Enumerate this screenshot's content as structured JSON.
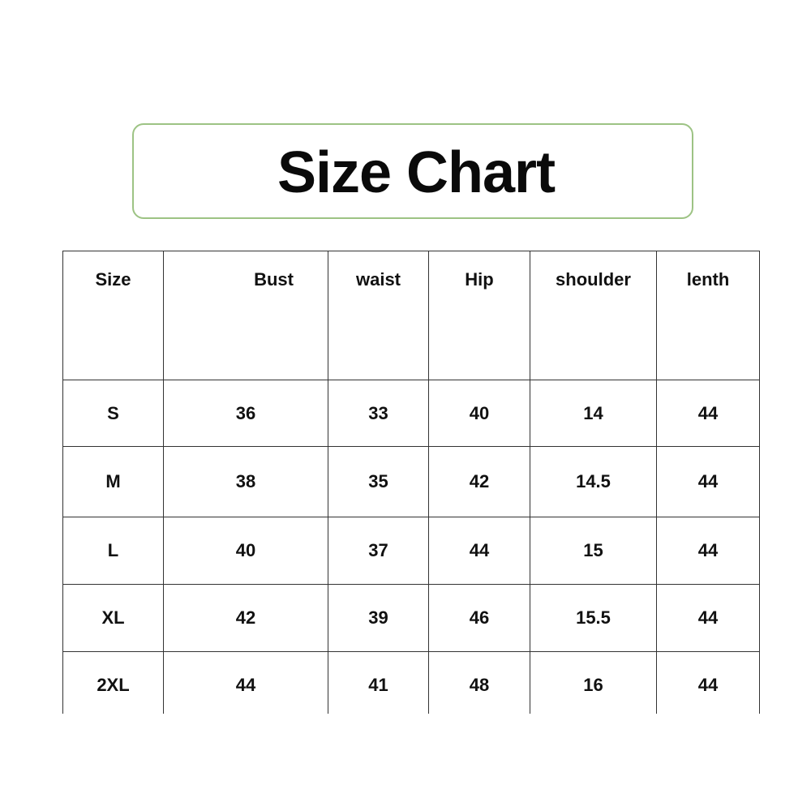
{
  "title": "Size Chart",
  "colors": {
    "title_border": "#9dc384",
    "grid": "#333333"
  },
  "table": {
    "headers": [
      "Size",
      "Bust",
      "waist",
      "Hip",
      "shoulder",
      "lenth"
    ],
    "rows": [
      [
        "S",
        "36",
        "33",
        "40",
        "14",
        "44"
      ],
      [
        "M",
        "38",
        "35",
        "42",
        "14.5",
        "44"
      ],
      [
        "L",
        "40",
        "37",
        "44",
        "15",
        "44"
      ],
      [
        "XL",
        "42",
        "39",
        "46",
        "15.5",
        "44"
      ],
      [
        "2XL",
        "44",
        "41",
        "48",
        "16",
        "44"
      ]
    ]
  }
}
